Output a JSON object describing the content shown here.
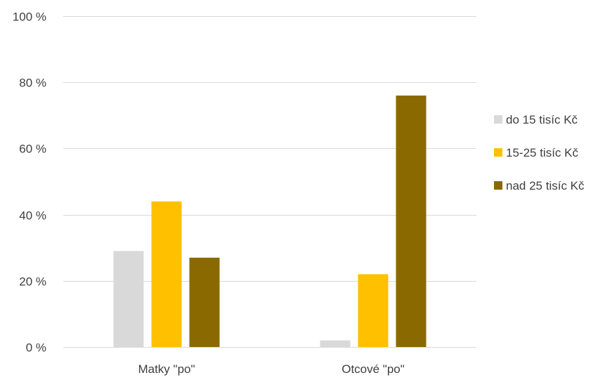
{
  "chart_data": {
    "type": "bar",
    "categories": [
      "Matky \"po\"",
      "Otcové \"po\""
    ],
    "series": [
      {
        "name": "do 15 tisíc Kč",
        "values": [
          29,
          2
        ],
        "color": "#d9d9d9"
      },
      {
        "name": "15-25 tisíc Kč",
        "values": [
          44,
          22
        ],
        "color": "#ffc000"
      },
      {
        "name": "nad 25 tisíc Kč",
        "values": [
          27,
          76
        ],
        "color": "#8a6a00"
      }
    ],
    "y_ticks": [
      0,
      20,
      40,
      60,
      80,
      100
    ],
    "y_tick_labels": [
      "0 %",
      "20 %",
      "40 %",
      "60 %",
      "80 %",
      "100 %"
    ],
    "ylim": [
      0,
      100
    ],
    "grid": true,
    "legend_position": "right",
    "gridline_color": "#d9d9d9"
  }
}
